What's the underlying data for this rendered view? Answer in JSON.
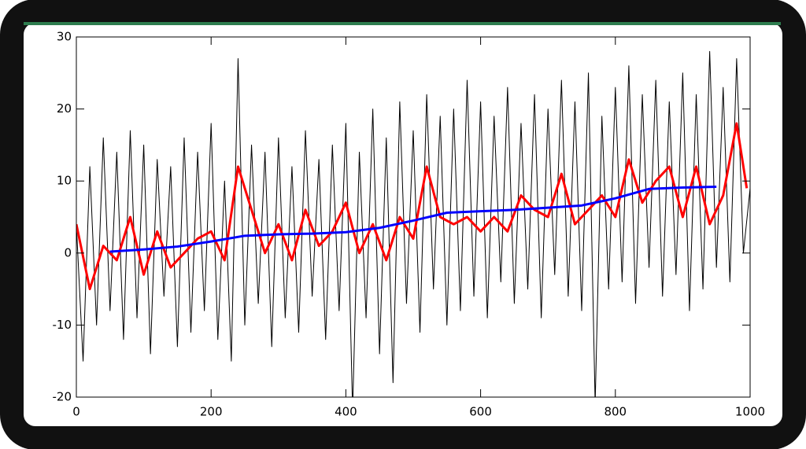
{
  "chart_data": {
    "type": "line",
    "xlim": [
      0,
      1000
    ],
    "xticks": [
      0,
      200,
      400,
      600,
      800,
      1000
    ],
    "ylim": [
      -20,
      30
    ],
    "yticks": [
      -20,
      -10,
      0,
      10,
      20,
      30
    ],
    "series": [
      {
        "color": "#000000",
        "width": 1,
        "x": [
          0,
          10,
          20,
          30,
          40,
          50,
          60,
          70,
          80,
          90,
          100,
          110,
          120,
          130,
          140,
          150,
          160,
          170,
          180,
          190,
          200,
          210,
          220,
          230,
          240,
          250,
          260,
          270,
          280,
          290,
          300,
          310,
          320,
          330,
          340,
          350,
          360,
          370,
          380,
          390,
          400,
          410,
          420,
          430,
          440,
          450,
          460,
          470,
          480,
          490,
          500,
          510,
          520,
          530,
          540,
          550,
          560,
          570,
          580,
          590,
          600,
          610,
          620,
          630,
          640,
          650,
          660,
          670,
          680,
          690,
          700,
          710,
          720,
          730,
          740,
          750,
          760,
          770,
          780,
          790,
          800,
          810,
          820,
          830,
          840,
          850,
          860,
          870,
          880,
          890,
          900,
          910,
          920,
          930,
          940,
          950,
          960,
          970,
          980,
          990,
          1000
        ],
        "values": [
          4,
          -15,
          12,
          -10,
          16,
          -8,
          14,
          -12,
          17,
          -9,
          15,
          -14,
          13,
          -6,
          12,
          -13,
          16,
          -11,
          14,
          -8,
          18,
          -12,
          10,
          -15,
          27,
          -10,
          15,
          -7,
          14,
          -13,
          16,
          -9,
          12,
          -11,
          17,
          -6,
          13,
          -12,
          15,
          -8,
          18,
          -22,
          14,
          -9,
          20,
          -14,
          16,
          -18,
          21,
          -7,
          17,
          -11,
          22,
          -5,
          19,
          -10,
          20,
          -8,
          24,
          -6,
          21,
          -9,
          19,
          -4,
          23,
          -7,
          18,
          -5,
          22,
          -9,
          20,
          -3,
          24,
          -6,
          21,
          -8,
          25,
          -21,
          19,
          -5,
          23,
          -4,
          26,
          -7,
          22,
          -2,
          24,
          -6,
          21,
          -3,
          25,
          -8,
          22,
          -5,
          28,
          -2,
          23,
          -4,
          27,
          0,
          9
        ]
      },
      {
        "color": "#ff0000",
        "width": 3,
        "x": [
          0,
          20,
          40,
          60,
          80,
          100,
          120,
          140,
          160,
          180,
          200,
          220,
          240,
          260,
          280,
          300,
          320,
          340,
          360,
          380,
          400,
          420,
          440,
          460,
          480,
          500,
          520,
          540,
          560,
          580,
          600,
          620,
          640,
          660,
          680,
          700,
          720,
          740,
          760,
          780,
          800,
          820,
          840,
          860,
          880,
          900,
          920,
          940,
          960,
          980,
          995
        ],
        "values": [
          4,
          -5,
          1,
          -1,
          5,
          -3,
          3,
          -2,
          0,
          2,
          3,
          -1,
          12,
          6,
          0,
          4,
          -1,
          6,
          1,
          3,
          7,
          0,
          4,
          -1,
          5,
          2,
          12,
          5,
          4,
          5,
          3,
          5,
          3,
          8,
          6,
          5,
          11,
          4,
          6,
          8,
          5,
          13,
          7,
          10,
          12,
          5,
          12,
          4,
          8,
          18,
          9
        ]
      },
      {
        "color": "#0000ff",
        "width": 3,
        "x": [
          50,
          100,
          150,
          200,
          250,
          300,
          350,
          400,
          450,
          500,
          550,
          600,
          650,
          700,
          750,
          800,
          850,
          900,
          950
        ],
        "values": [
          0.2,
          0.5,
          0.9,
          1.6,
          2.4,
          2.6,
          2.7,
          2.9,
          3.5,
          4.5,
          5.6,
          5.8,
          6.0,
          6.3,
          6.6,
          7.6,
          8.9,
          9.1,
          9.2
        ]
      }
    ]
  }
}
